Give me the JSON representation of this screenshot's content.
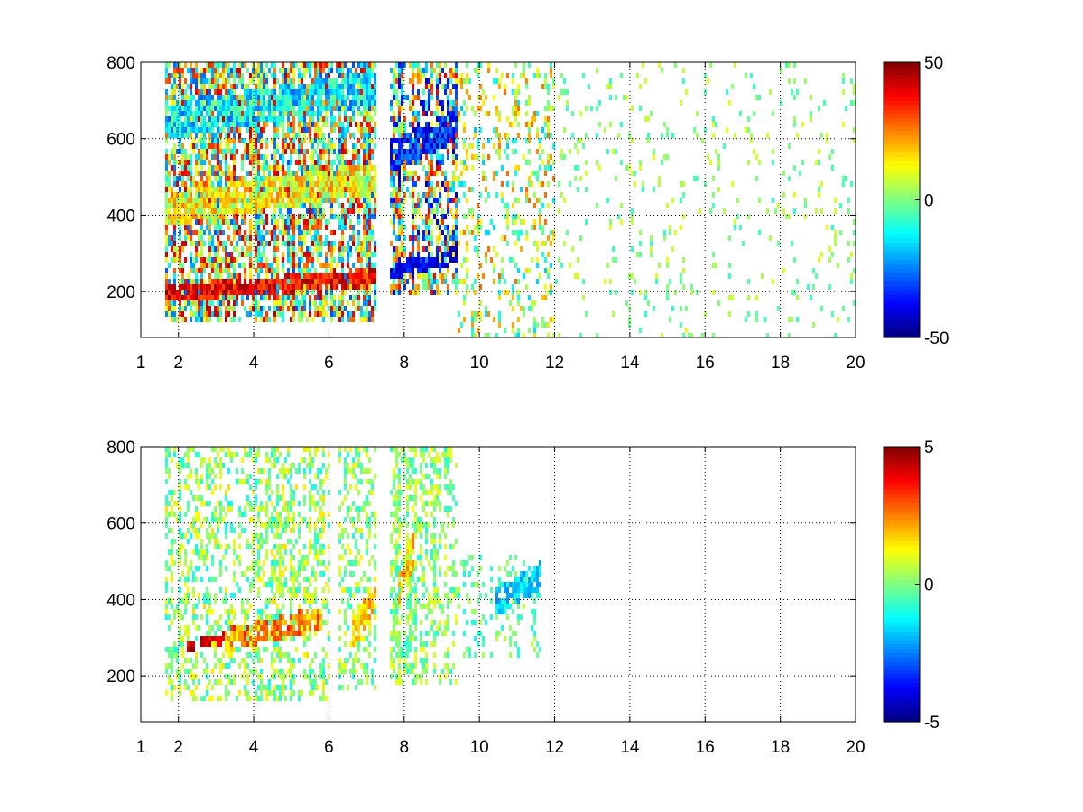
{
  "chart_data": [
    {
      "type": "heatmap",
      "title": "",
      "xlabel": "",
      "ylabel": "",
      "xlim": [
        1,
        20
      ],
      "ylim": [
        80,
        800
      ],
      "xticks": [
        1,
        2,
        4,
        6,
        8,
        10,
        12,
        14,
        16,
        18,
        20
      ],
      "yticks": [
        200,
        400,
        600,
        800
      ],
      "grid": true,
      "colormap": "jet",
      "colorbar": {
        "limits": [
          -50,
          50
        ],
        "ticks": [
          50,
          0,
          -50
        ]
      },
      "bands": [
        {
          "x": [
            1.6,
            7.2
          ],
          "y": [
            200,
            275
          ],
          "value": 38,
          "spread": 10
        },
        {
          "x": [
            1.6,
            7.2
          ],
          "y": [
            420,
            560
          ],
          "value": 12,
          "spread": 14
        },
        {
          "x": [
            1.6,
            7.2
          ],
          "y": [
            650,
            800
          ],
          "value": -14,
          "spread": 14
        },
        {
          "x": [
            7.6,
            9.4
          ],
          "y": [
            260,
            330
          ],
          "value": -38,
          "spread": 10
        },
        {
          "x": [
            7.6,
            9.4
          ],
          "y": [
            560,
            700
          ],
          "value": -34,
          "spread": 12
        }
      ],
      "regions": [
        {
          "x": [
            1.6,
            7.2
          ],
          "y": [
            130,
            800
          ],
          "value_range": [
            -30,
            45
          ],
          "fill": 0.65
        },
        {
          "x": [
            7.6,
            9.4
          ],
          "y": [
            200,
            800
          ],
          "value_range": [
            -45,
            40
          ],
          "fill": 0.6
        },
        {
          "x": [
            9.4,
            12.0
          ],
          "y": [
            80,
            800
          ],
          "value_range": [
            -18,
            28
          ],
          "fill": 0.22
        },
        {
          "x": [
            12.0,
            20.0
          ],
          "y": [
            80,
            800
          ],
          "value_range": [
            -8,
            10
          ],
          "fill": 0.07
        }
      ]
    },
    {
      "type": "heatmap",
      "title": "",
      "xlabel": "",
      "ylabel": "",
      "xlim": [
        1,
        20
      ],
      "ylim": [
        80,
        800
      ],
      "xticks": [
        1,
        2,
        4,
        6,
        8,
        10,
        12,
        14,
        16,
        18,
        20
      ],
      "yticks": [
        200,
        400,
        600,
        800
      ],
      "grid": true,
      "colormap": "jet",
      "colorbar": {
        "limits": [
          -5,
          5
        ],
        "ticks": [
          5,
          0,
          -5
        ]
      },
      "bands": [
        {
          "x": [
            2.2,
            3.2
          ],
          "y": [
            285,
            320
          ],
          "value": 4.3,
          "spread": 0.7
        },
        {
          "x": [
            3.2,
            5.8
          ],
          "y": [
            300,
            400
          ],
          "value": 2.4,
          "spread": 1.2
        },
        {
          "x": [
            6.6,
            7.2
          ],
          "y": [
            320,
            460
          ],
          "value": 1.8,
          "spread": 0.8
        },
        {
          "x": [
            7.8,
            8.2
          ],
          "y": [
            440,
            600
          ],
          "value": 1.6,
          "spread": 1.0
        },
        {
          "x": [
            10.4,
            11.6
          ],
          "y": [
            400,
            520
          ],
          "value": -1.6,
          "spread": 0.8
        }
      ],
      "regions": [
        {
          "x": [
            1.6,
            6.0
          ],
          "y": [
            140,
            800
          ],
          "value_range": [
            -1.2,
            1.6
          ],
          "fill": 0.4
        },
        {
          "x": [
            6.2,
            7.2
          ],
          "y": [
            170,
            800
          ],
          "value_range": [
            -1.0,
            1.4
          ],
          "fill": 0.4
        },
        {
          "x": [
            7.6,
            9.4
          ],
          "y": [
            180,
            800
          ],
          "value_range": [
            -1.0,
            1.2
          ],
          "fill": 0.45
        },
        {
          "x": [
            9.4,
            11.6
          ],
          "y": [
            250,
            520
          ],
          "value_range": [
            -1.2,
            0.6
          ],
          "fill": 0.18
        }
      ]
    }
  ]
}
